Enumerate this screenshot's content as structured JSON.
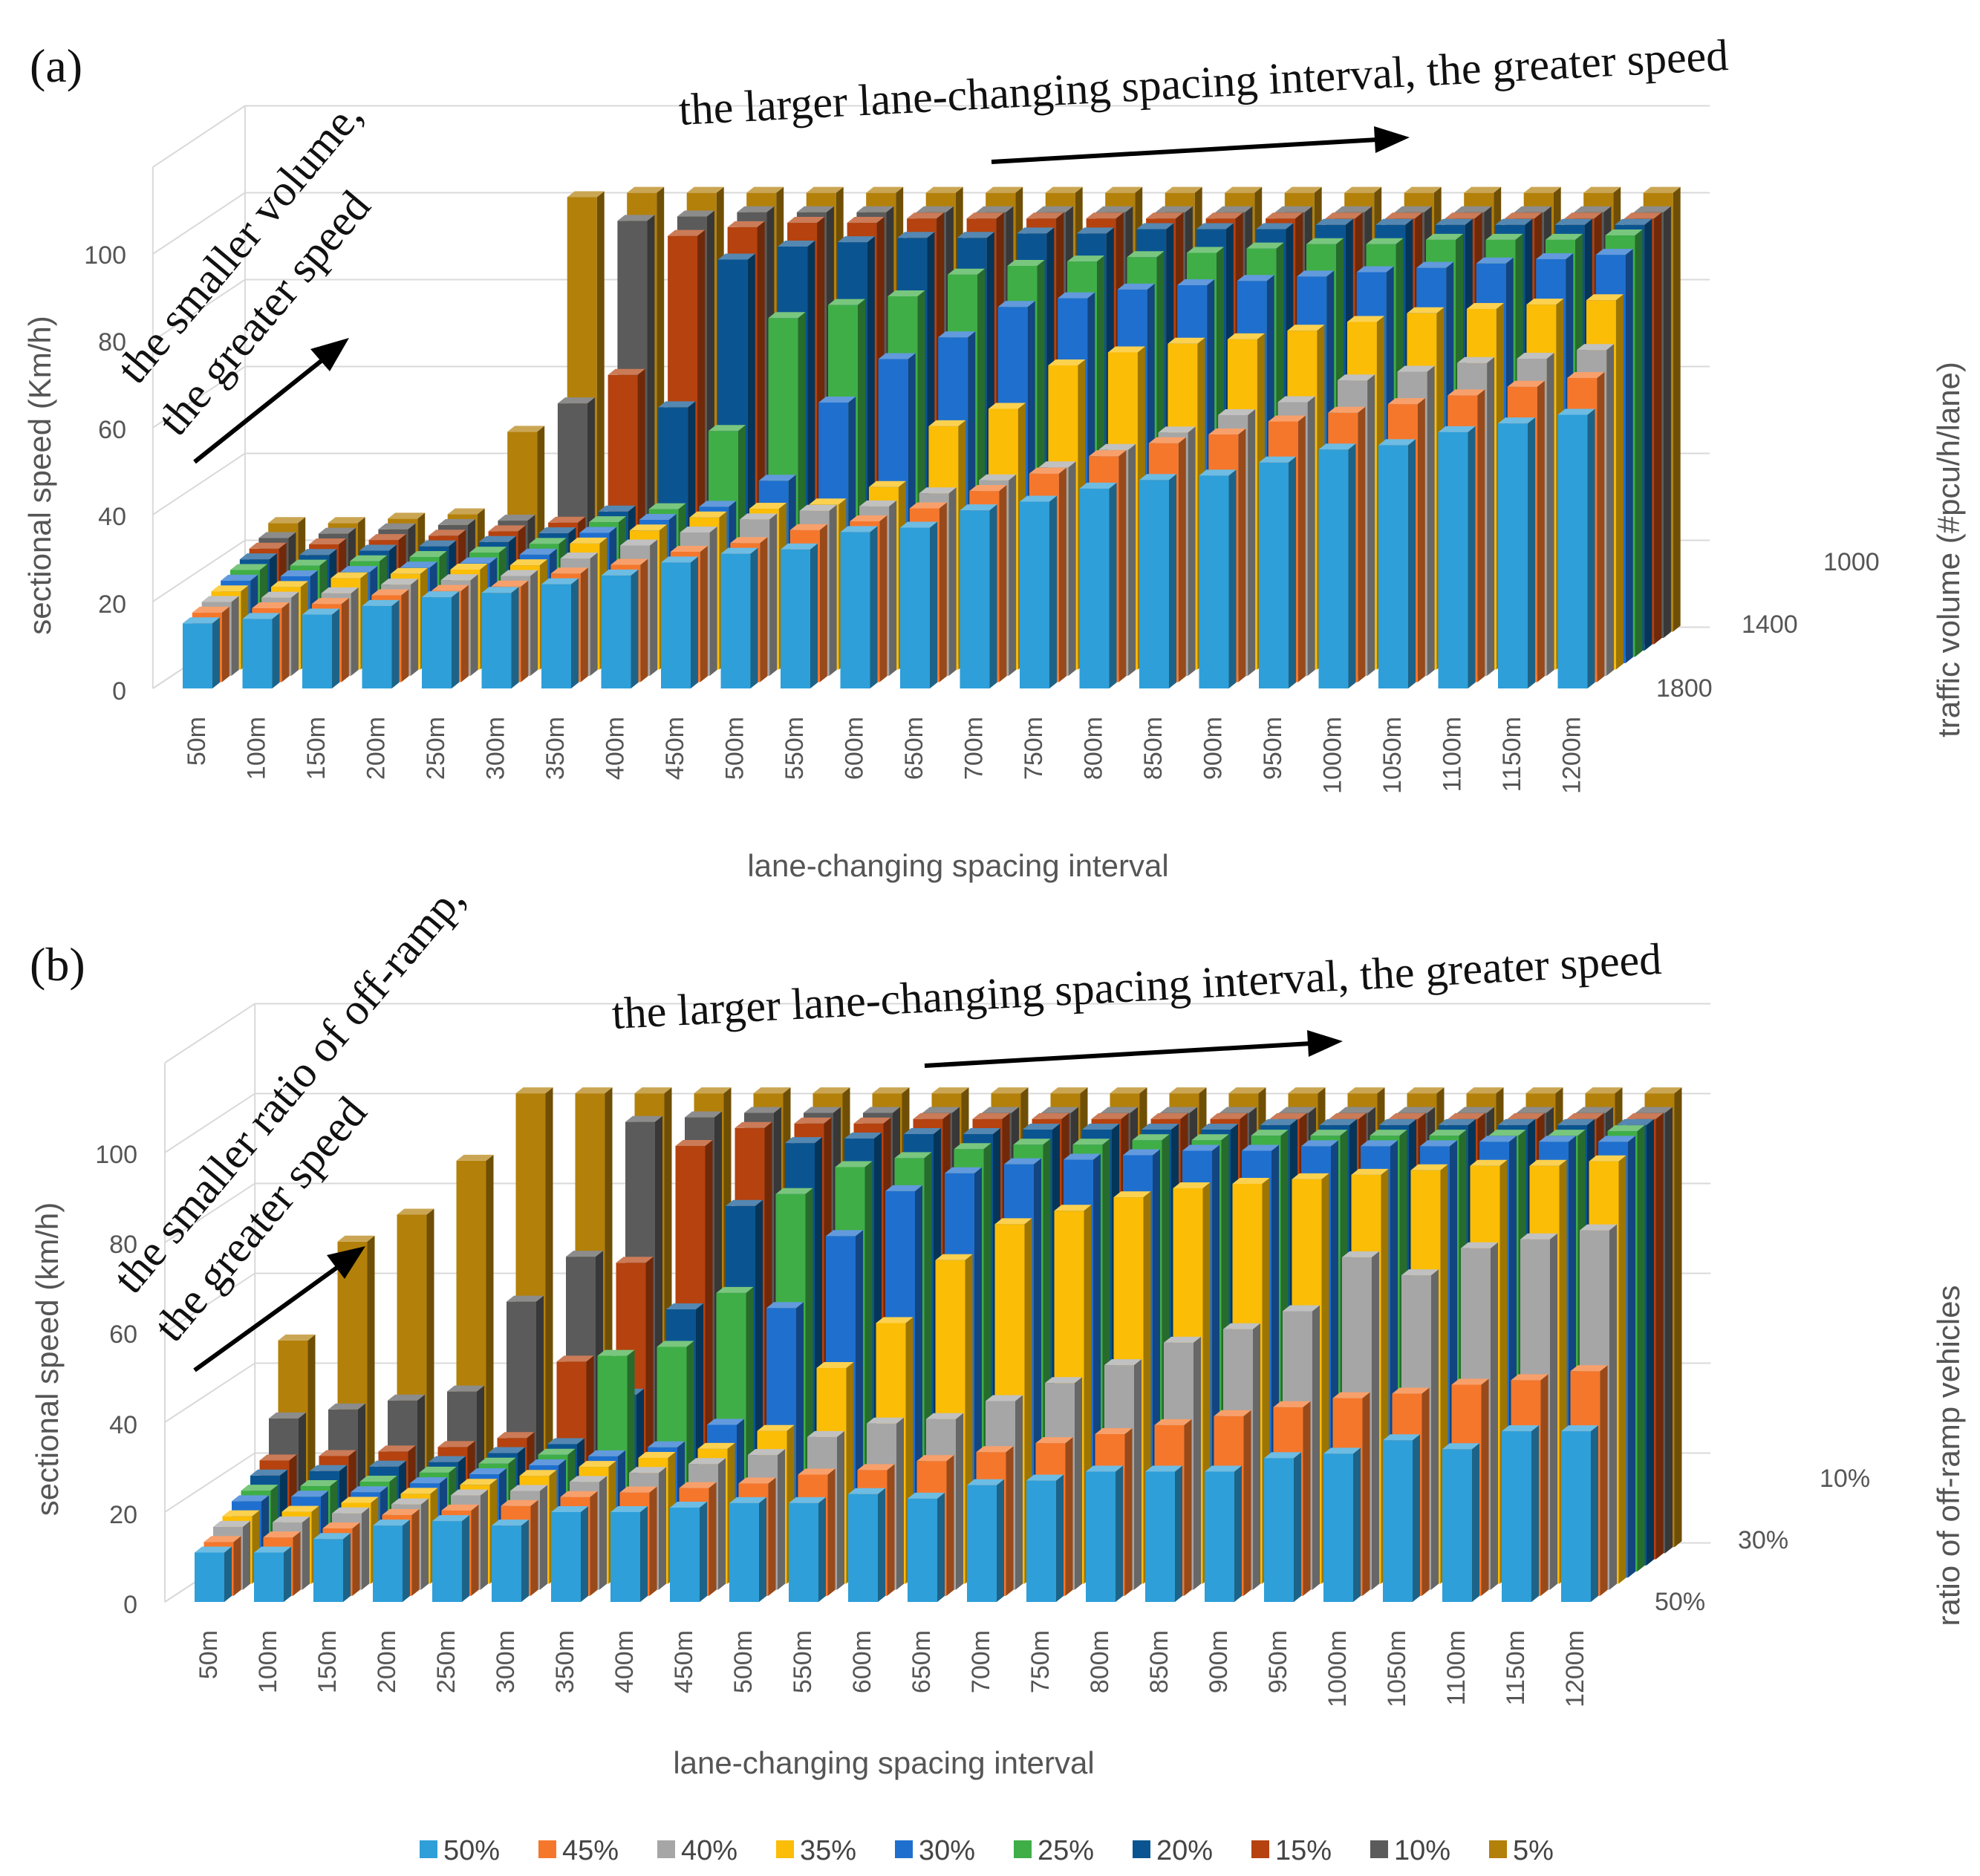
{
  "figure": {
    "legend_items": [
      "50%",
      "45%",
      "40%",
      "35%",
      "30%",
      "25%",
      "20%",
      "15%",
      "10%",
      "5%"
    ],
    "legend_colors": [
      "#2e9fd9",
      "#f5772c",
      "#a6a6a6",
      "#fbbd05",
      "#1f6fcf",
      "#3fae47",
      "#0a5591",
      "#b5420f",
      "#5b5b5b",
      "#b3800a"
    ]
  },
  "chart_data": [
    {
      "type": "bar",
      "subtype": "3d-bar",
      "panel_label": "(a)",
      "xlabel": "lane-changing spacing interval",
      "ylabel": "sectional speed (Km/h)",
      "zlabel": "traffic volume (#pcu/h/lane)",
      "ylim": [
        0,
        100
      ],
      "yticks": [
        "0",
        "20",
        "40",
        "60",
        "80",
        "100"
      ],
      "depth_ticks": [
        "1800",
        "1400",
        "1000"
      ],
      "annotations": {
        "left_line1": "the smaller volume,",
        "left_line2": "the greater speed",
        "top": "the larger lane-changing spacing interval, the greater speed"
      },
      "categories": [
        "50m",
        "100m",
        "150m",
        "200m",
        "250m",
        "300m",
        "350m",
        "400m",
        "450m",
        "500m",
        "550m",
        "600m",
        "650m",
        "700m",
        "750m",
        "800m",
        "850m",
        "900m",
        "950m",
        "1000m",
        "1050m",
        "1100m",
        "1150m",
        "1200m"
      ],
      "series": [
        {
          "name": "50%",
          "values": [
            15,
            16,
            17,
            19,
            21,
            22,
            24,
            26,
            29,
            31,
            32,
            36,
            37,
            41,
            43,
            46,
            48,
            49,
            52,
            55,
            56,
            59,
            61,
            63
          ]
        },
        {
          "name": "45%",
          "values": [
            16,
            17,
            18,
            20,
            21,
            22,
            25,
            27,
            30,
            32,
            35,
            37,
            40,
            44,
            48,
            52,
            55,
            57,
            60,
            62,
            64,
            66,
            68,
            70
          ]
        },
        {
          "name": "40%",
          "values": [
            17,
            18,
            19,
            21,
            22,
            23,
            27,
            30,
            33,
            36,
            38,
            39,
            42,
            45,
            48,
            52,
            56,
            60,
            63,
            68,
            70,
            72,
            73,
            75
          ]
        },
        {
          "name": "35%",
          "values": [
            18,
            19,
            21,
            22,
            23,
            24,
            29,
            32,
            35,
            37,
            38,
            42,
            56,
            60,
            70,
            73,
            75,
            76,
            78,
            80,
            82,
            83,
            84,
            85
          ]
        },
        {
          "name": "30%",
          "values": [
            19,
            20,
            21,
            22,
            23,
            25,
            30,
            33,
            36,
            42,
            60,
            70,
            75,
            82,
            84,
            86,
            87,
            88,
            89,
            90,
            91,
            92,
            93,
            94
          ]
        },
        {
          "name": "25%",
          "values": [
            20,
            21,
            22,
            23,
            24,
            26,
            31,
            34,
            52,
            78,
            81,
            83,
            88,
            90,
            91,
            92,
            93,
            94,
            95,
            95,
            96,
            96,
            96,
            97
          ]
        },
        {
          "name": "20%",
          "values": [
            21,
            22,
            23,
            24,
            25,
            27,
            32,
            56,
            90,
            93,
            94,
            95,
            95,
            96,
            96,
            97,
            97,
            97,
            98,
            98,
            98,
            98,
            98,
            98
          ]
        },
        {
          "name": "15%",
          "values": [
            22,
            23,
            24,
            25,
            26,
            28,
            62,
            94,
            96,
            97,
            97,
            98,
            98,
            98,
            98,
            98,
            98,
            98,
            98,
            98,
            98,
            98,
            98,
            98
          ]
        },
        {
          "name": "10%",
          "values": [
            23,
            24,
            25,
            26,
            27,
            54,
            96,
            97,
            98,
            98,
            98,
            98,
            98,
            98,
            98,
            98,
            98,
            98,
            98,
            98,
            98,
            98,
            98,
            98
          ]
        },
        {
          "name": "5%",
          "values": [
            25,
            25,
            26,
            27,
            46,
            100,
            101,
            101,
            101,
            101,
            101,
            101,
            101,
            101,
            101,
            101,
            101,
            101,
            101,
            101,
            101,
            101,
            101,
            101
          ]
        }
      ]
    },
    {
      "type": "bar",
      "subtype": "3d-bar",
      "panel_label": "(b)",
      "xlabel": "lane-changing spacing interval",
      "ylabel": "sectional speed (km/h)",
      "zlabel": "ratio of off-ramp vehicles",
      "ylim": [
        0,
        100
      ],
      "yticks": [
        "0",
        "20",
        "40",
        "60",
        "80",
        "100"
      ],
      "depth_ticks": [
        "50%",
        "30%",
        "10%"
      ],
      "annotations": {
        "left_line1": "the smaller ratio of off-ramp,",
        "left_line2": "the greater speed",
        "top": "the larger lane-changing spacing interval, the greater speed"
      },
      "categories": [
        "50m",
        "100m",
        "150m",
        "200m",
        "250m",
        "300m",
        "350m",
        "400m",
        "450m",
        "500m",
        "550m",
        "600m",
        "650m",
        "700m",
        "750m",
        "800m",
        "850m",
        "900m",
        "950m",
        "1000m",
        "1050m",
        "1100m",
        "1150m",
        "1200m"
      ],
      "series": [
        {
          "name": "50%",
          "values": [
            11,
            11,
            14,
            17,
            18,
            17,
            20,
            20,
            21,
            22,
            22,
            24,
            23,
            26,
            27,
            29,
            29,
            29,
            32,
            33,
            36,
            34,
            38,
            38
          ]
        },
        {
          "name": "45%",
          "values": [
            12,
            13,
            15,
            18,
            19,
            20,
            22,
            23,
            24,
            25,
            27,
            28,
            30,
            32,
            34,
            36,
            38,
            40,
            42,
            44,
            45,
            47,
            48,
            50
          ]
        },
        {
          "name": "40%",
          "values": [
            14,
            15,
            17,
            19,
            21,
            22,
            24,
            26,
            28,
            30,
            34,
            37,
            38,
            42,
            46,
            50,
            55,
            58,
            62,
            74,
            70,
            76,
            78,
            80
          ]
        },
        {
          "name": "35%",
          "values": [
            15,
            16,
            18,
            20,
            22,
            24,
            26,
            28,
            30,
            34,
            48,
            58,
            72,
            80,
            83,
            86,
            88,
            89,
            90,
            91,
            92,
            93,
            93,
            94
          ]
        },
        {
          "name": "30%",
          "values": [
            17,
            18,
            19,
            21,
            23,
            25,
            27,
            29,
            34,
            60,
            76,
            86,
            90,
            92,
            93,
            94,
            95,
            95,
            96,
            96,
            96,
            97,
            97,
            97
          ]
        },
        {
          "name": "25%",
          "values": [
            18,
            19,
            20,
            22,
            24,
            26,
            48,
            50,
            62,
            84,
            90,
            92,
            94,
            95,
            95,
            96,
            96,
            97,
            97,
            97,
            97,
            97,
            97,
            98
          ]
        },
        {
          "name": "20%",
          "values": [
            20,
            21,
            22,
            23,
            25,
            27,
            38,
            57,
            80,
            94,
            95,
            96,
            96,
            97,
            97,
            97,
            97,
            98,
            98,
            98,
            98,
            98,
            98,
            98
          ]
        },
        {
          "name": "15%",
          "values": [
            22,
            23,
            24,
            25,
            27,
            44,
            66,
            92,
            96,
            97,
            97,
            98,
            98,
            98,
            98,
            98,
            98,
            98,
            98,
            98,
            98,
            98,
            98,
            98
          ]
        },
        {
          "name": "10%",
          "values": [
            30,
            32,
            34,
            36,
            56,
            66,
            96,
            97,
            98,
            98,
            98,
            98,
            98,
            98,
            98,
            98,
            98,
            98,
            98,
            98,
            98,
            98,
            98,
            98
          ]
        },
        {
          "name": "5%",
          "values": [
            46,
            68,
            74,
            86,
            101,
            101,
            101,
            101,
            101,
            101,
            101,
            101,
            101,
            101,
            101,
            101,
            101,
            101,
            101,
            101,
            101,
            101,
            101,
            101
          ]
        }
      ]
    }
  ]
}
